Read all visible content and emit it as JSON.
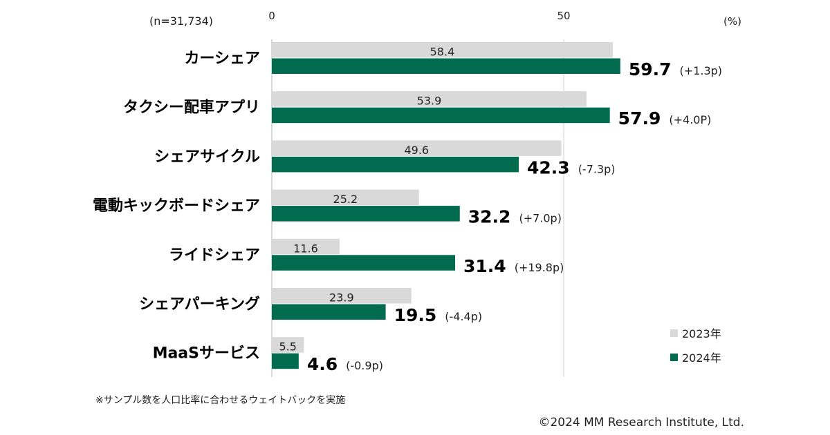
{
  "chart_data": {
    "type": "bar",
    "orientation": "horizontal",
    "sample_size": "(n=31,734)",
    "unit_label": "(%)",
    "categories": [
      "カーシェア",
      "タクシー配車アプリ",
      "シェアサイクル",
      "電動キックボードシェア",
      "ライドシェア",
      "シェアパーキング",
      "MaaSサービス"
    ],
    "series": [
      {
        "name": "2023年",
        "color": "#d9d9d9",
        "values": [
          58.4,
          53.9,
          49.6,
          25.2,
          11.6,
          23.9,
          5.5
        ]
      },
      {
        "name": "2024年",
        "color": "#006b4f",
        "values": [
          59.7,
          57.9,
          42.3,
          32.2,
          31.4,
          19.5,
          4.6
        ]
      }
    ],
    "value_labels_2023": [
      "58.4",
      "53.9",
      "49.6",
      "25.2",
      "11.6",
      "23.9",
      "5.5"
    ],
    "value_labels_2024": [
      "59.7",
      "57.9",
      "42.3",
      "32.2",
      "31.4",
      "19.5",
      "4.6"
    ],
    "deltas": [
      "(+1.3p)",
      "(+4.0P)",
      "(-7.3p)",
      "(+7.0p)",
      "(+19.8p)",
      "(-4.4p)",
      "(-0.9p)"
    ],
    "xlim": [
      0,
      80
    ],
    "xticks": [
      0,
      50
    ],
    "xtick_labels": [
      "0",
      "50"
    ],
    "grid": true,
    "legend": {
      "placement": "bottom-right",
      "entries": [
        "2023年",
        "2024年"
      ]
    },
    "footnote": "※サンプル数を人口比率に合わせるウェイトバックを実施",
    "copyright": "©2024 MM Research Institute, Ltd."
  }
}
